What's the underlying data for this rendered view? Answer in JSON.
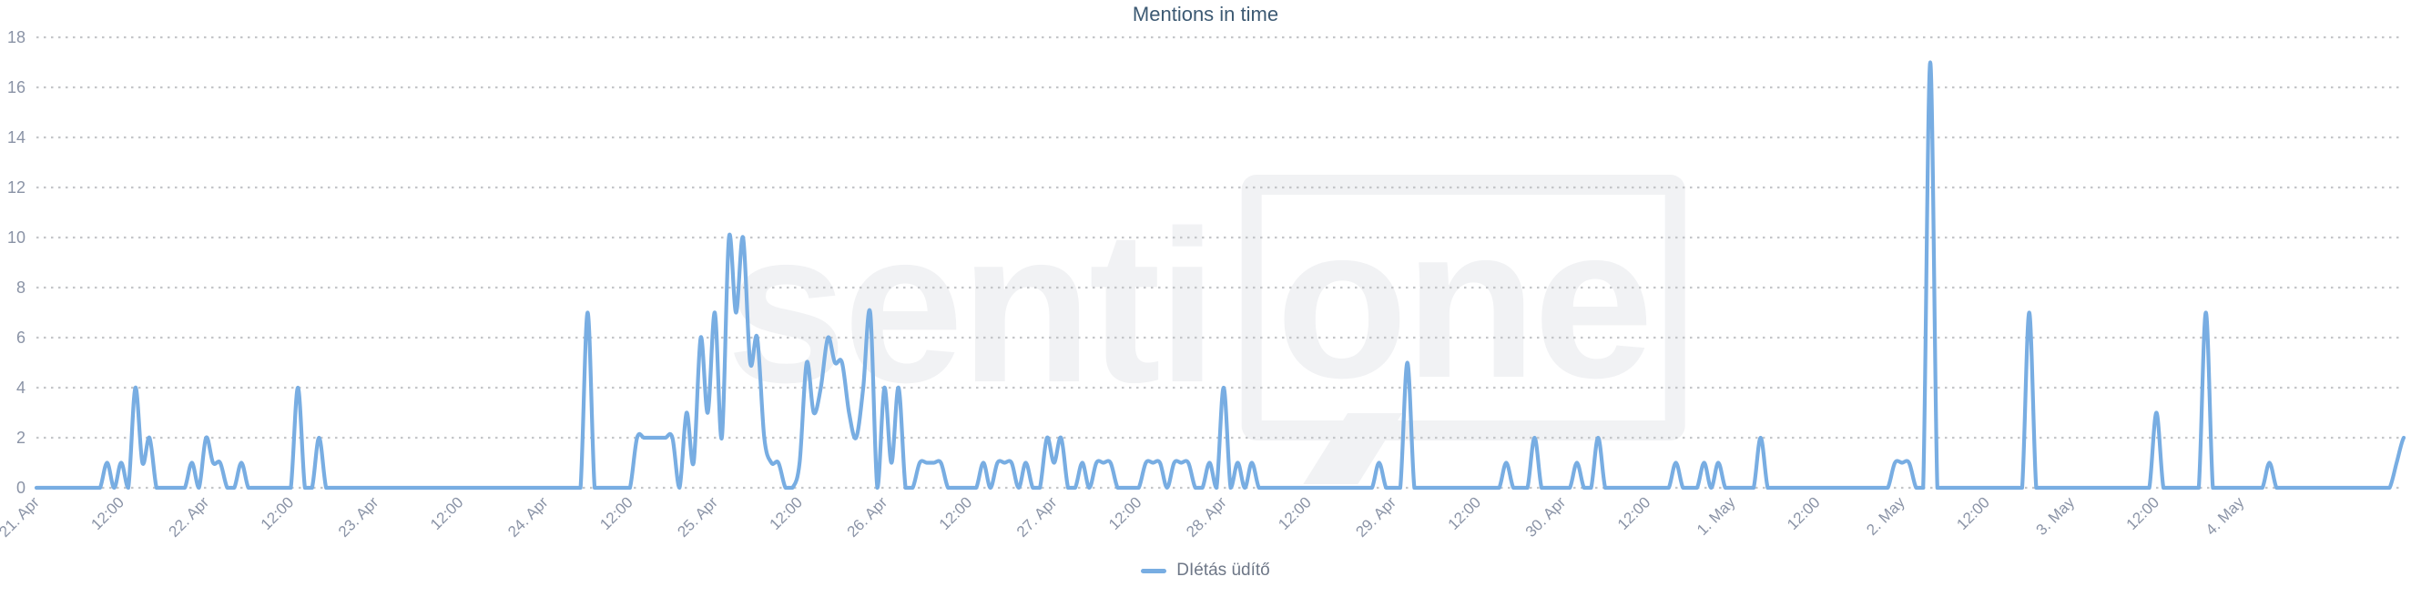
{
  "header": {
    "title": "Mentions in time"
  },
  "watermark": {
    "part1": "senti",
    "part2": "one"
  },
  "legend": [
    {
      "label": "DIétás üdítő",
      "color": "#78ade2"
    }
  ],
  "colors": {
    "background": "#ffffff",
    "title": "#3d5a73",
    "axis_labels": "#8a93a6",
    "gridline": "#c4c6c9",
    "series_line": "#78ade2",
    "watermark": "#f1f2f4",
    "legend_text": "#6e7787"
  },
  "chart_data": {
    "type": "line",
    "title": "Mentions in time",
    "xlabel": "",
    "ylabel": "",
    "x_unit": "1 point per hour",
    "x_range": "21. Apr 00:00 - 4. May 23:00",
    "points_per_tick": 12,
    "x_tick_labels": [
      "21. Apr",
      "12:00",
      "22. Apr",
      "12:00",
      "23. Apr",
      "12:00",
      "24. Apr",
      "12:00",
      "25. Apr",
      "12:00",
      "26. Apr",
      "12:00",
      "27. Apr",
      "12:00",
      "28. Apr",
      "12:00",
      "29. Apr",
      "12:00",
      "30. Apr",
      "12:00",
      "1. May",
      "12:00",
      "2. May",
      "12:00",
      "3. May",
      "12:00",
      "4. May"
    ],
    "y_ticks": [
      0,
      2,
      4,
      6,
      8,
      10,
      12,
      14,
      16,
      18
    ],
    "ylim": [
      0,
      18
    ],
    "grid": "horizontal dotted",
    "legend_position": "bottom-center",
    "series": [
      {
        "name": "DIétás üdítő",
        "color": "#78ade2",
        "values": [
          0,
          0,
          0,
          0,
          0,
          0,
          0,
          0,
          0,
          0,
          1,
          0,
          1,
          0,
          4,
          1,
          2,
          0,
          0,
          0,
          0,
          0,
          1,
          0,
          2,
          1,
          1,
          0,
          0,
          1,
          0,
          0,
          0,
          0,
          0,
          0,
          0,
          4,
          0,
          0,
          2,
          0,
          0,
          0,
          0,
          0,
          0,
          0,
          0,
          0,
          0,
          0,
          0,
          0,
          0,
          0,
          0,
          0,
          0,
          0,
          0,
          0,
          0,
          0,
          0,
          0,
          0,
          0,
          0,
          0,
          0,
          0,
          0,
          0,
          0,
          0,
          0,
          0,
          7,
          0,
          0,
          0,
          0,
          0,
          0,
          2,
          2,
          2,
          2,
          2,
          2,
          0,
          3,
          1,
          6,
          3,
          7,
          2,
          10,
          7,
          10,
          5,
          6,
          2,
          1,
          1,
          0,
          0,
          1,
          5,
          3,
          4,
          6,
          5,
          5,
          3,
          2,
          4,
          7,
          0,
          4,
          1,
          4,
          0,
          0,
          1,
          1,
          1,
          1,
          0,
          0,
          0,
          0,
          0,
          1,
          0,
          1,
          1,
          1,
          0,
          1,
          0,
          0,
          2,
          1,
          2,
          0,
          0,
          1,
          0,
          1,
          1,
          1,
          0,
          0,
          0,
          0,
          1,
          1,
          1,
          0,
          1,
          1,
          1,
          0,
          0,
          1,
          0,
          4,
          0,
          1,
          0,
          1,
          0,
          0,
          0,
          0,
          0,
          0,
          0,
          0,
          0,
          0,
          0,
          0,
          0,
          0,
          0,
          0,
          0,
          1,
          0,
          0,
          0,
          5,
          0,
          0,
          0,
          0,
          0,
          0,
          0,
          0,
          0,
          0,
          0,
          0,
          0,
          1,
          0,
          0,
          0,
          2,
          0,
          0,
          0,
          0,
          0,
          1,
          0,
          0,
          2,
          0,
          0,
          0,
          0,
          0,
          0,
          0,
          0,
          0,
          0,
          1,
          0,
          0,
          0,
          1,
          0,
          1,
          0,
          0,
          0,
          0,
          0,
          2,
          0,
          0,
          0,
          0,
          0,
          0,
          0,
          0,
          0,
          0,
          0,
          0,
          0,
          0,
          0,
          0,
          0,
          0,
          1,
          1,
          1,
          0,
          0,
          17,
          0,
          0,
          0,
          0,
          0,
          0,
          0,
          0,
          0,
          0,
          0,
          0,
          0,
          7,
          0,
          0,
          0,
          0,
          0,
          0,
          0,
          0,
          0,
          0,
          0,
          0,
          0,
          0,
          0,
          0,
          0,
          3,
          0,
          0,
          0,
          0,
          0,
          0,
          7,
          0,
          0,
          0,
          0,
          0,
          0,
          0,
          0,
          1,
          0,
          0,
          0,
          0,
          0,
          0,
          0,
          0,
          0,
          0,
          0,
          0,
          0,
          0,
          0,
          0,
          0,
          1,
          2
        ]
      }
    ]
  }
}
